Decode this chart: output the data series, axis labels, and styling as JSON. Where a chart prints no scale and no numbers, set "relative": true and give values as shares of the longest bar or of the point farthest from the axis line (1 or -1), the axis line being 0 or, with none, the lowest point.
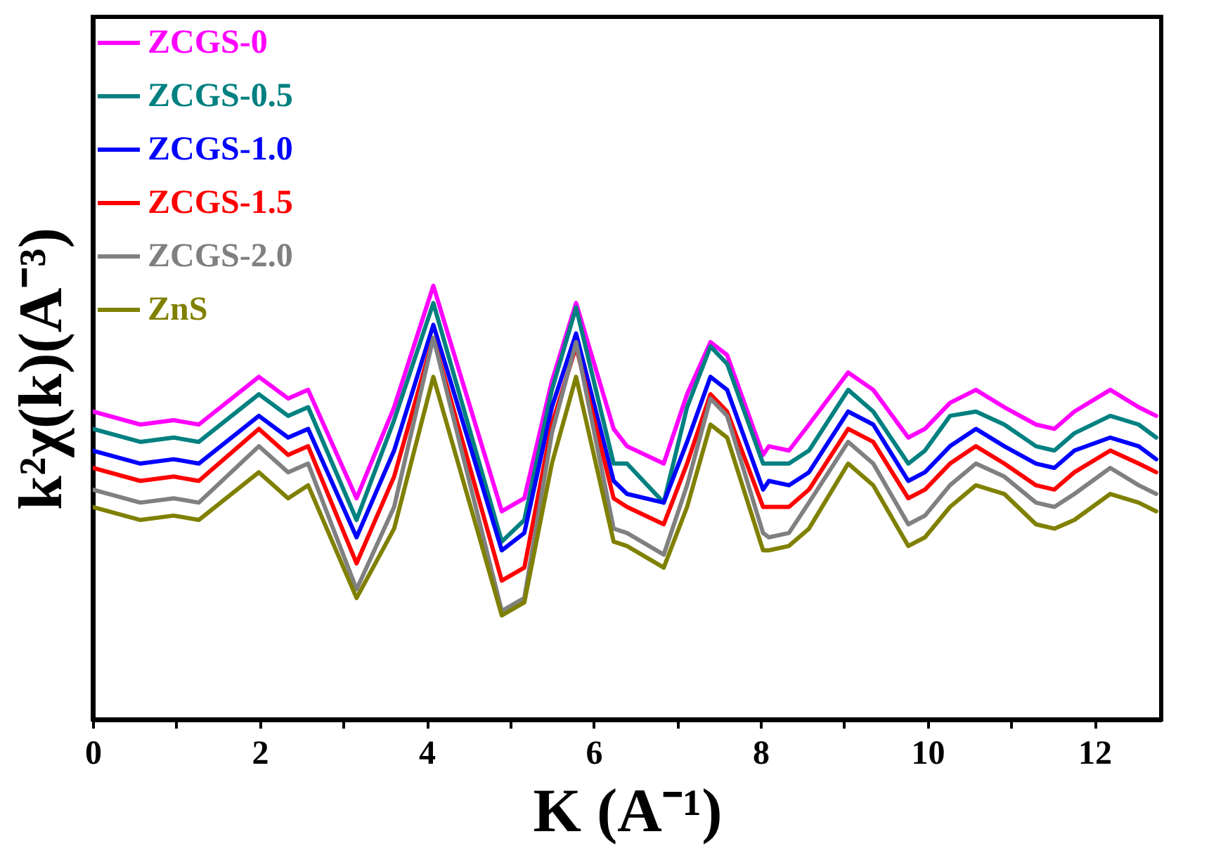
{
  "chart_data": {
    "type": "line",
    "relative": true,
    "xlabel": "K (A⁻¹)",
    "ylabel": "k²χ(k)(A⁻³)",
    "x": [
      0,
      0.57,
      0.97,
      1.27,
      1.99,
      2.34,
      2.58,
      3.16,
      3.61,
      4.08,
      4.9,
      5.17,
      5.5,
      5.79,
      6.24,
      6.4,
      6.84,
      7.12,
      7.4,
      7.6,
      8.03,
      8.1,
      8.34,
      8.58,
      9.05,
      9.35,
      9.77,
      9.97,
      10.27,
      10.58,
      10.92,
      11.3,
      11.52,
      11.76,
      12.19,
      12.53,
      12.74
    ],
    "xlim": [
      0,
      12.8
    ],
    "xticks": [
      0,
      {
        "value": 1,
        "label": null
      },
      2,
      {
        "value": 3,
        "label": null
      },
      4,
      {
        "value": 5,
        "label": null
      },
      6,
      {
        "value": 7,
        "label": null
      },
      8,
      {
        "value": 9,
        "label": null
      },
      10,
      {
        "value": 11,
        "label": null
      },
      12
    ],
    "legend": "top left",
    "line_style": "solid",
    "marker": "none",
    "grid": false,
    "series": [
      {
        "name": "ZCGS-0",
        "color": "#ff00ff",
        "values": [
          0.71,
          0.68,
          0.69,
          0.68,
          0.79,
          0.74,
          0.76,
          0.51,
          0.72,
          1,
          0.48,
          0.51,
          0.78,
          0.96,
          0.67,
          0.63,
          0.59,
          0.75,
          0.87,
          0.84,
          0.61,
          0.63,
          0.62,
          0.68,
          0.8,
          0.76,
          0.65,
          0.67,
          0.73,
          0.76,
          0.72,
          0.68,
          0.67,
          0.71,
          0.76,
          0.72,
          0.7
        ]
      },
      {
        "name": "ZCGS-0.5",
        "color": "#008080",
        "values": [
          0.67,
          0.64,
          0.65,
          0.64,
          0.75,
          0.7,
          0.72,
          0.46,
          0.69,
          0.96,
          0.41,
          0.46,
          0.76,
          0.95,
          0.59,
          0.59,
          0.5,
          0.72,
          0.86,
          0.82,
          0.59,
          0.59,
          0.59,
          0.62,
          0.76,
          0.71,
          0.59,
          0.62,
          0.7,
          0.71,
          0.68,
          0.63,
          0.62,
          0.66,
          0.7,
          0.68,
          0.65
        ]
      },
      {
        "name": "ZCGS-1.0",
        "color": "#0000ff",
        "values": [
          0.62,
          0.59,
          0.6,
          0.59,
          0.7,
          0.65,
          0.67,
          0.42,
          0.62,
          0.91,
          0.39,
          0.43,
          0.72,
          0.89,
          0.55,
          0.52,
          0.5,
          0.64,
          0.79,
          0.76,
          0.53,
          0.55,
          0.54,
          0.57,
          0.71,
          0.68,
          0.55,
          0.57,
          0.63,
          0.67,
          0.63,
          0.59,
          0.58,
          0.62,
          0.65,
          0.63,
          0.6
        ]
      },
      {
        "name": "ZCGS-1.5",
        "color": "#ff0000",
        "values": [
          0.58,
          0.55,
          0.56,
          0.55,
          0.67,
          0.61,
          0.63,
          0.36,
          0.56,
          0.88,
          0.32,
          0.35,
          0.68,
          0.86,
          0.51,
          0.49,
          0.45,
          0.59,
          0.75,
          0.71,
          0.49,
          0.49,
          0.49,
          0.53,
          0.67,
          0.64,
          0.51,
          0.53,
          0.59,
          0.63,
          0.59,
          0.54,
          0.53,
          0.57,
          0.62,
          0.59,
          0.57
        ]
      },
      {
        "name": "ZCGS-2.0",
        "color": "#808080",
        "values": [
          0.53,
          0.5,
          0.51,
          0.5,
          0.63,
          0.57,
          0.59,
          0.3,
          0.49,
          0.88,
          0.25,
          0.28,
          0.66,
          0.87,
          0.44,
          0.43,
          0.38,
          0.54,
          0.74,
          0.7,
          0.43,
          0.42,
          0.43,
          0.5,
          0.64,
          0.59,
          0.45,
          0.47,
          0.54,
          0.59,
          0.56,
          0.5,
          0.49,
          0.52,
          0.58,
          0.54,
          0.52
        ]
      },
      {
        "name": "ZnS",
        "color": "#808000",
        "values": [
          0.49,
          0.46,
          0.47,
          0.46,
          0.57,
          0.51,
          0.54,
          0.28,
          0.44,
          0.79,
          0.24,
          0.27,
          0.59,
          0.79,
          0.41,
          0.4,
          0.35,
          0.49,
          0.68,
          0.65,
          0.39,
          0.39,
          0.4,
          0.44,
          0.59,
          0.54,
          0.4,
          0.42,
          0.49,
          0.54,
          0.52,
          0.45,
          0.44,
          0.46,
          0.52,
          0.5,
          0.48
        ]
      }
    ]
  }
}
